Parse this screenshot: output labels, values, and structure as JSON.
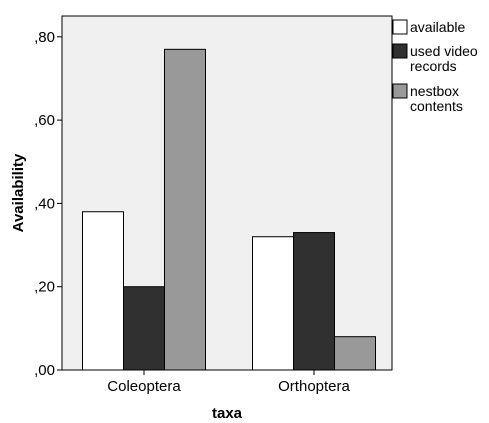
{
  "chart_data": {
    "type": "bar",
    "xlabel": "taxa",
    "ylabel": "Availability",
    "categories": [
      "Coleoptera",
      "Orthoptera"
    ],
    "ylim": [
      0,
      0.85
    ],
    "yticks": [
      0,
      0.2,
      0.4,
      0.6,
      0.8
    ],
    "ytick_labels": [
      ",00",
      ",20",
      ",40",
      ",60",
      ",80"
    ],
    "series": [
      {
        "name": "available",
        "values": [
          0.38,
          0.32
        ],
        "color": "#ffffff"
      },
      {
        "name": "used video records",
        "name_lines": [
          "used video",
          "records"
        ],
        "values": [
          0.2,
          0.33
        ],
        "color": "#303030"
      },
      {
        "name": "nestbox contents",
        "name_lines": [
          "nestbox",
          "contents"
        ],
        "values": [
          0.77,
          0.08
        ],
        "color": "#999999"
      }
    ],
    "plot_background": "#f0f0f0",
    "grid": false,
    "legend": "right"
  }
}
